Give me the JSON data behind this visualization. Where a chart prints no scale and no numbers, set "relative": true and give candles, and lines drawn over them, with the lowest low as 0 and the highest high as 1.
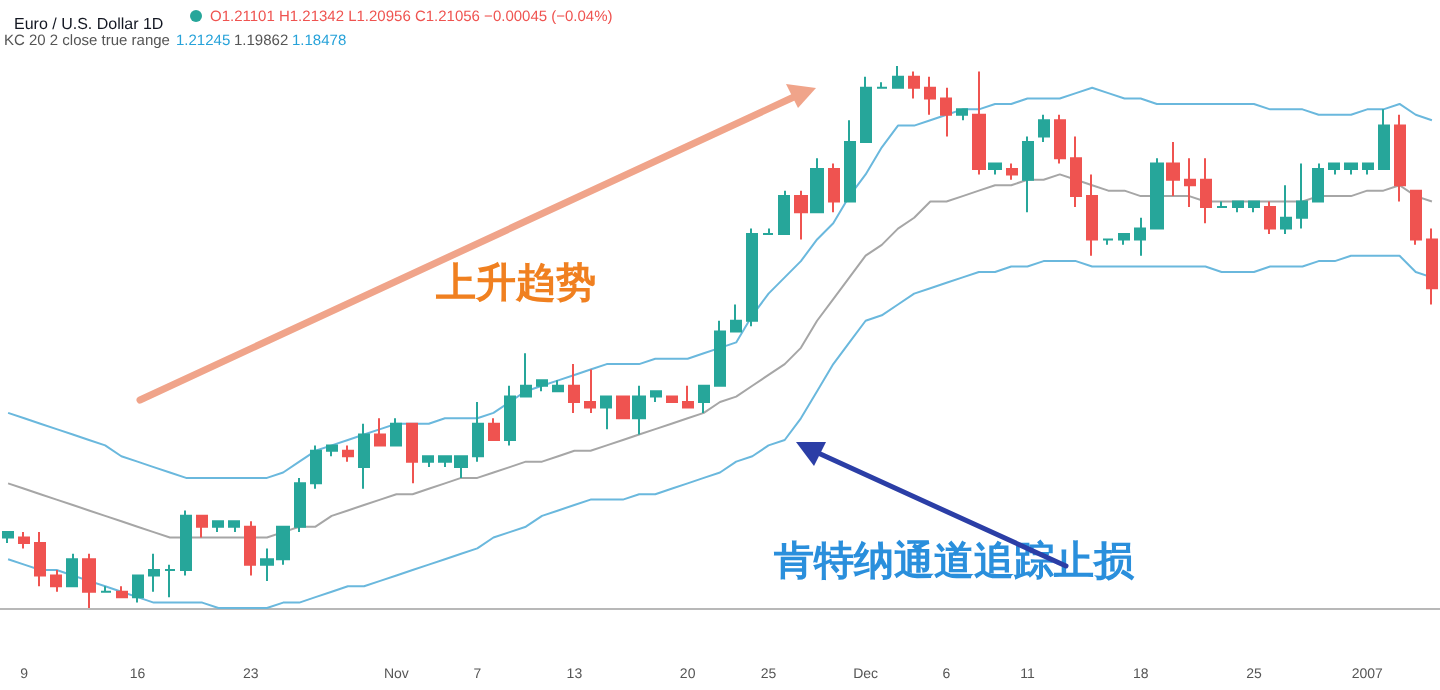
{
  "chart_data": {
    "type": "candlestick",
    "relative": true,
    "title": "Euro / U.S. Dollar 1D",
    "annotations": [
      "O1.21101 H1.21342 L1.20956 C1.21056 −0.00045 (−0.04%)",
      "KC 20 2 close true range",
      "1.21245",
      "1.19862",
      "1.18478",
      "上升趋势",
      "肯特纳通道追踪止损"
    ],
    "categories": [
      null,
      "9",
      null,
      null,
      null,
      null,
      null,
      null,
      "16",
      null,
      null,
      null,
      null,
      null,
      null,
      "23",
      null,
      null,
      null,
      null,
      null,
      null,
      null,
      null,
      "Nov",
      null,
      null,
      null,
      null,
      "7",
      null,
      null,
      null,
      null,
      null,
      "13",
      null,
      null,
      null,
      null,
      null,
      null,
      "20",
      null,
      null,
      null,
      null,
      "25",
      null,
      null,
      null,
      null,
      null,
      "Dec",
      null,
      null,
      null,
      null,
      "6",
      null,
      null,
      null,
      null,
      "11",
      null,
      null,
      null,
      null,
      null,
      null,
      "18",
      null,
      null,
      null,
      null,
      null,
      null,
      "25",
      null,
      null,
      null,
      null,
      null,
      null,
      "2007",
      null,
      null,
      null,
      null
    ],
    "ohlc": [
      [
        0.13,
        0.14,
        0.12,
        0.14
      ],
      [
        0.13,
        0.14,
        0.11,
        0.12
      ],
      [
        0.12,
        0.14,
        0.04,
        0.06
      ],
      [
        0.06,
        0.07,
        0.03,
        0.04
      ],
      [
        0.04,
        0.1,
        0.04,
        0.09
      ],
      [
        0.09,
        0.1,
        0,
        0.03
      ],
      [
        0.03,
        0.04,
        0.03,
        0.03
      ],
      [
        0.03,
        0.04,
        0.02,
        0.02
      ],
      [
        0.02,
        0.06,
        0.01,
        0.06
      ],
      [
        0.06,
        0.1,
        0.03,
        0.07
      ],
      [
        0.07,
        0.08,
        0.02,
        0.07
      ],
      [
        0.07,
        0.18,
        0.06,
        0.17
      ],
      [
        0.17,
        0.17,
        0.13,
        0.15
      ],
      [
        0.15,
        0.16,
        0.14,
        0.16
      ],
      [
        0.15,
        0.16,
        0.14,
        0.16
      ],
      [
        0.15,
        0.16,
        0.06,
        0.08
      ],
      [
        0.08,
        0.11,
        0.05,
        0.09
      ],
      [
        0.09,
        0.15,
        0.08,
        0.15
      ],
      [
        0.15,
        0.24,
        0.14,
        0.23
      ],
      [
        0.23,
        0.3,
        0.22,
        0.29
      ],
      [
        0.29,
        0.3,
        0.28,
        0.3
      ],
      [
        0.29,
        0.3,
        0.27,
        0.28
      ],
      [
        0.26,
        0.34,
        0.22,
        0.32
      ],
      [
        0.32,
        0.35,
        0.3,
        0.3
      ],
      [
        0.3,
        0.35,
        0.3,
        0.34
      ],
      [
        0.34,
        0.34,
        0.23,
        0.27
      ],
      [
        0.27,
        0.28,
        0.26,
        0.28
      ],
      [
        0.27,
        0.28,
        0.26,
        0.28
      ],
      [
        0.26,
        0.28,
        0.24,
        0.28
      ],
      [
        0.28,
        0.38,
        0.27,
        0.34
      ],
      [
        0.34,
        0.35,
        0.31,
        0.31
      ],
      [
        0.31,
        0.41,
        0.3,
        0.39
      ],
      [
        0.39,
        0.47,
        0.39,
        0.41
      ],
      [
        0.41,
        0.42,
        0.4,
        0.42
      ],
      [
        0.4,
        0.42,
        0.4,
        0.41
      ],
      [
        0.41,
        0.45,
        0.36,
        0.38
      ],
      [
        0.38,
        0.44,
        0.36,
        0.37
      ],
      [
        0.37,
        0.39,
        0.33,
        0.39
      ],
      [
        0.39,
        0.39,
        0.35,
        0.35
      ],
      [
        0.35,
        0.41,
        0.32,
        0.39
      ],
      [
        0.39,
        0.4,
        0.38,
        0.4
      ],
      [
        0.39,
        0.39,
        0.38,
        0.38
      ],
      [
        0.38,
        0.41,
        0.37,
        0.37
      ],
      [
        0.38,
        0.41,
        0.36,
        0.41
      ],
      [
        0.41,
        0.53,
        0.41,
        0.51
      ],
      [
        0.51,
        0.56,
        0.51,
        0.53
      ],
      [
        0.53,
        0.7,
        0.52,
        0.69
      ],
      [
        0.69,
        0.7,
        0.69,
        0.69
      ],
      [
        0.69,
        0.77,
        0.69,
        0.76
      ],
      [
        0.76,
        0.77,
        0.68,
        0.73
      ],
      [
        0.73,
        0.83,
        0.73,
        0.81
      ],
      [
        0.81,
        0.82,
        0.73,
        0.75
      ],
      [
        0.75,
        0.9,
        0.75,
        0.86
      ],
      [
        0.86,
        0.98,
        0.86,
        0.96
      ],
      [
        0.96,
        0.97,
        0.96,
        0.96
      ],
      [
        0.96,
        1,
        0.96,
        0.98
      ],
      [
        0.98,
        0.99,
        0.94,
        0.96
      ],
      [
        0.96,
        0.98,
        0.91,
        0.94
      ],
      [
        0.94,
        0.96,
        0.87,
        0.91
      ],
      [
        0.91,
        0.92,
        0.9,
        0.92
      ],
      [
        0.91,
        0.99,
        0.8,
        0.81
      ],
      [
        0.81,
        0.82,
        0.8,
        0.82
      ],
      [
        0.81,
        0.82,
        0.79,
        0.8
      ],
      [
        0.79,
        0.87,
        0.73,
        0.86
      ],
      [
        0.87,
        0.91,
        0.86,
        0.9
      ],
      [
        0.9,
        0.91,
        0.82,
        0.83
      ],
      [
        0.83,
        0.87,
        0.74,
        0.76
      ],
      [
        0.76,
        0.8,
        0.65,
        0.68
      ],
      [
        0.68,
        0.68,
        0.67,
        0.68
      ],
      [
        0.68,
        0.69,
        0.67,
        0.69
      ],
      [
        0.68,
        0.72,
        0.65,
        0.7
      ],
      [
        0.7,
        0.83,
        0.7,
        0.82
      ],
      [
        0.82,
        0.86,
        0.76,
        0.79
      ],
      [
        0.79,
        0.83,
        0.74,
        0.78
      ],
      [
        0.79,
        0.83,
        0.71,
        0.74
      ],
      [
        0.74,
        0.75,
        0.74,
        0.74
      ],
      [
        0.74,
        0.75,
        0.73,
        0.75
      ],
      [
        0.74,
        0.75,
        0.73,
        0.75
      ],
      [
        0.74,
        0.75,
        0.69,
        0.7
      ],
      [
        0.7,
        0.78,
        0.69,
        0.72
      ],
      [
        0.72,
        0.82,
        0.7,
        0.75
      ],
      [
        0.75,
        0.82,
        0.75,
        0.81
      ],
      [
        0.81,
        0.82,
        0.8,
        0.82
      ],
      [
        0.81,
        0.82,
        0.8,
        0.82
      ],
      [
        0.81,
        0.82,
        0.8,
        0.82
      ],
      [
        0.81,
        0.92,
        0.81,
        0.89
      ],
      [
        0.89,
        0.91,
        0.75,
        0.78
      ],
      [
        0.77,
        0.77,
        0.67,
        0.68
      ],
      [
        0.68,
        0.7,
        0.56,
        0.59
      ]
    ],
    "colors": [
      "#26a69a",
      "#ef5350",
      "#ef5350",
      "#ef5350",
      "#26a69a",
      "#ef5350",
      "#26a69a",
      "#ef5350",
      "#26a69a",
      "#26a69a",
      "#26a69a",
      "#26a69a",
      "#ef5350",
      "#26a69a",
      "#26a69a",
      "#ef5350",
      "#26a69a",
      "#26a69a",
      "#26a69a",
      "#26a69a",
      "#26a69a",
      "#ef5350",
      "#26a69a",
      "#ef5350",
      "#26a69a",
      "#ef5350",
      "#26a69a",
      "#26a69a",
      "#26a69a",
      "#26a69a",
      "#ef5350",
      "#26a69a",
      "#26a69a",
      "#26a69a",
      "#26a69a",
      "#ef5350",
      "#ef5350",
      "#26a69a",
      "#ef5350",
      "#26a69a",
      "#26a69a",
      "#ef5350",
      "#ef5350",
      "#26a69a",
      "#26a69a",
      "#26a69a",
      "#26a69a",
      "#26a69a",
      "#26a69a",
      "#ef5350",
      "#26a69a",
      "#ef5350",
      "#26a69a",
      "#26a69a",
      "#26a69a",
      "#26a69a",
      "#ef5350",
      "#ef5350",
      "#ef5350",
      "#26a69a",
      "#ef5350",
      "#26a69a",
      "#ef5350",
      "#26a69a",
      "#26a69a",
      "#ef5350",
      "#ef5350",
      "#ef5350",
      "#26a69a",
      "#26a69a",
      "#26a69a",
      "#26a69a",
      "#ef5350",
      "#ef5350",
      "#ef5350",
      "#26a69a",
      "#26a69a",
      "#26a69a",
      "#ef5350",
      "#26a69a",
      "#26a69a",
      "#26a69a",
      "#26a69a",
      "#26a69a",
      "#26a69a",
      "#26a69a",
      "#ef5350",
      "#ef5350",
      "#ef5350"
    ],
    "series": [
      {
        "type": "line",
        "color": "#6ab8dd",
        "values": [
          0.36,
          0.35,
          0.34,
          0.33,
          0.32,
          0.31,
          0.3,
          0.28,
          0.27,
          0.26,
          0.25,
          0.24,
          0.24,
          0.24,
          0.24,
          0.24,
          0.24,
          0.25,
          0.27,
          0.29,
          0.3,
          0.31,
          0.32,
          0.33,
          0.34,
          0.34,
          0.34,
          0.35,
          0.35,
          0.35,
          0.36,
          0.38,
          0.4,
          0.41,
          0.42,
          0.43,
          0.44,
          0.45,
          0.45,
          0.45,
          0.46,
          0.46,
          0.46,
          0.47,
          0.48,
          0.49,
          0.54,
          0.58,
          0.61,
          0.64,
          0.68,
          0.71,
          0.76,
          0.8,
          0.85,
          0.89,
          0.89,
          0.9,
          0.91,
          0.92,
          0.92,
          0.93,
          0.93,
          0.94,
          0.94,
          0.94,
          0.95,
          0.96,
          0.95,
          0.94,
          0.94,
          0.93,
          0.93,
          0.93,
          0.93,
          0.93,
          0.93,
          0.93,
          0.92,
          0.92,
          0.92,
          0.91,
          0.91,
          0.91,
          0.92,
          0.92,
          0.93,
          0.91,
          0.9
        ]
      },
      {
        "type": "line",
        "color": "#a6a6a6",
        "values": [
          0.23,
          0.22,
          0.21,
          0.2,
          0.19,
          0.18,
          0.17,
          0.16,
          0.15,
          0.14,
          0.13,
          0.13,
          0.13,
          0.13,
          0.13,
          0.13,
          0.13,
          0.14,
          0.15,
          0.15,
          0.17,
          0.18,
          0.19,
          0.2,
          0.21,
          0.21,
          0.22,
          0.23,
          0.24,
          0.24,
          0.25,
          0.26,
          0.27,
          0.27,
          0.28,
          0.29,
          0.29,
          0.3,
          0.31,
          0.32,
          0.33,
          0.34,
          0.35,
          0.36,
          0.38,
          0.39,
          0.41,
          0.43,
          0.45,
          0.48,
          0.53,
          0.57,
          0.61,
          0.65,
          0.67,
          0.7,
          0.72,
          0.75,
          0.75,
          0.76,
          0.77,
          0.78,
          0.78,
          0.79,
          0.79,
          0.8,
          0.79,
          0.78,
          0.77,
          0.77,
          0.76,
          0.76,
          0.76,
          0.76,
          0.75,
          0.75,
          0.75,
          0.75,
          0.75,
          0.75,
          0.75,
          0.76,
          0.76,
          0.76,
          0.77,
          0.77,
          0.78,
          0.76,
          0.75
        ]
      },
      {
        "type": "line",
        "color": "#6ab8dd",
        "values": [
          0.09,
          0.08,
          0.07,
          0.07,
          0.06,
          0.05,
          0.04,
          0.03,
          0.02,
          0.01,
          0.01,
          0.01,
          0.01,
          0.0,
          0.0,
          0.0,
          0.0,
          0.01,
          0.01,
          0.02,
          0.03,
          0.04,
          0.04,
          0.05,
          0.06,
          0.07,
          0.08,
          0.09,
          0.1,
          0.11,
          0.13,
          0.14,
          0.15,
          0.17,
          0.18,
          0.19,
          0.2,
          0.2,
          0.2,
          0.21,
          0.21,
          0.22,
          0.23,
          0.24,
          0.25,
          0.27,
          0.28,
          0.3,
          0.31,
          0.35,
          0.4,
          0.45,
          0.49,
          0.53,
          0.54,
          0.56,
          0.58,
          0.59,
          0.6,
          0.61,
          0.62,
          0.62,
          0.63,
          0.63,
          0.64,
          0.64,
          0.64,
          0.63,
          0.63,
          0.63,
          0.63,
          0.63,
          0.63,
          0.63,
          0.63,
          0.62,
          0.62,
          0.62,
          0.63,
          0.63,
          0.63,
          0.64,
          0.64,
          0.65,
          0.65,
          0.65,
          0.65,
          0.62,
          0.61
        ]
      }
    ],
    "marker": "none",
    "grid": false
  }
}
